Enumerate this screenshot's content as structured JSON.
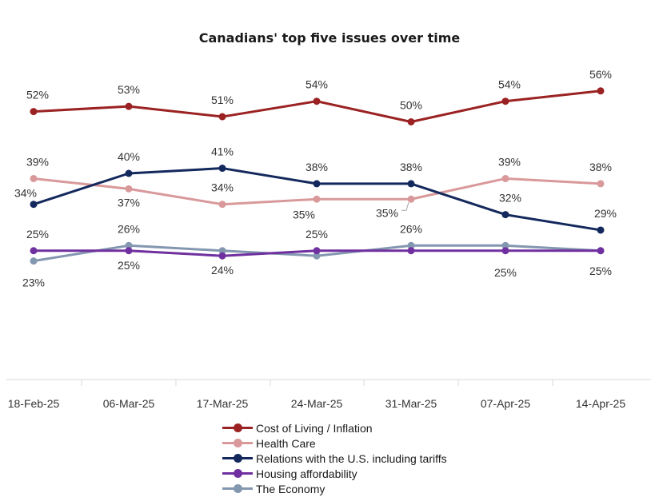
{
  "chart_data": {
    "type": "line",
    "title": "Canadians' top five issues over time",
    "categories": [
      "18-Feb-25",
      "06-Mar-25",
      "17-Mar-25",
      "24-Mar-25",
      "31-Mar-25",
      "07-Apr-25",
      "14-Apr-25"
    ],
    "unit": "%",
    "ylim": [
      0,
      60
    ],
    "grid": false,
    "legend_position": "bottom",
    "series": [
      {
        "name": "Cost of Living / Inflation",
        "color": "#9b2222",
        "values": [
          52,
          53,
          51,
          54,
          50,
          54,
          56
        ],
        "labels": [
          "52%",
          "53%",
          "51%",
          "54%",
          "50%",
          "54%",
          "56%"
        ]
      },
      {
        "name": "Health Care",
        "color": "#d9999a",
        "values": [
          39,
          37,
          34,
          35,
          35,
          39,
          38
        ],
        "labels": [
          "39%",
          "37%",
          "34%",
          "35%",
          "35%",
          "39%",
          "38%"
        ]
      },
      {
        "name": "Relations with the U.S. including tariffs",
        "color": "#13285c",
        "values": [
          34,
          40,
          41,
          38,
          38,
          32,
          29
        ],
        "labels": [
          "34%",
          "40%",
          "41%",
          "38%",
          "38%",
          "32%",
          "29%"
        ]
      },
      {
        "name": "Housing affordability",
        "color": "#7030a0",
        "values": [
          25,
          25,
          24,
          25,
          25,
          25,
          25
        ],
        "labels": [
          "25%",
          "25%",
          "24%",
          "25%",
          "",
          "25%",
          "25%"
        ]
      },
      {
        "name": "The Economy",
        "color": "#8497b0",
        "values": [
          23,
          26,
          25,
          24,
          26,
          26,
          25
        ],
        "labels": [
          "23%",
          "26%",
          "",
          "",
          "26%",
          "",
          ""
        ]
      }
    ]
  }
}
